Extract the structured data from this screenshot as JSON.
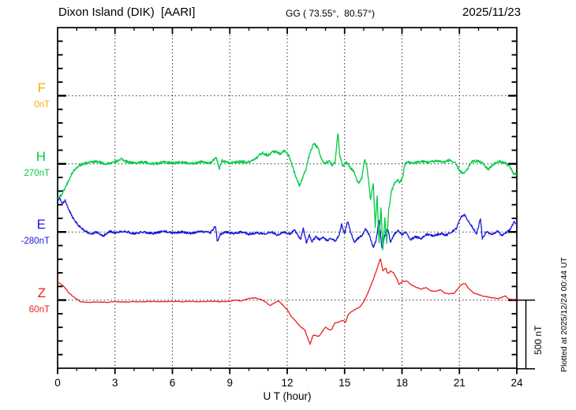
{
  "header": {
    "title": "Dixon Island (DIK)  [AARI]",
    "coordinates": "GG ( 73.55°,  80.57°)",
    "date": "2025/11/23"
  },
  "colors": {
    "F": "#ffaa00",
    "H": "#00cc44",
    "E": "#1818dd",
    "Z": "#ee1c1c",
    "frame": "#000000",
    "grid": "#333333"
  },
  "x_axis": {
    "tick_labels": [
      "0",
      "3",
      "6",
      "9",
      "12",
      "15",
      "18",
      "21",
      "24"
    ],
    "label": "U T (hour)"
  },
  "annotations": {
    "scale_bar_label": "500 nT",
    "plotted_at": "Plotted at 2025/12/24 00:44 UT"
  },
  "channels": [
    {
      "letter": "F",
      "baseline_label": "0nT"
    },
    {
      "letter": "H",
      "baseline_label": "270nT"
    },
    {
      "letter": "E",
      "baseline_label": "-280nT"
    },
    {
      "letter": "Z",
      "baseline_label": "60nT"
    }
  ],
  "chart_data": {
    "type": "line",
    "title": "Dixon Island (DIK) [AARI] magnetogram 2025/11/23",
    "xlabel": "U T (hour)",
    "x_range": [
      0,
      24
    ],
    "x_tick_step_hours": 3,
    "x_minor_tick_hours": 1,
    "grid": "dotted vertical lines every 3 h; dotted horizontal line at each channel baseline",
    "y_scale_note": "500 nT between adjacent channel baselines (scale bar at lower right)",
    "legend_position": "channel letters with baseline values along left margin",
    "series": [
      {
        "name": "F",
        "baseline_nT": 0,
        "color": "#ffaa00",
        "no_data": true,
        "noise_nT": 0,
        "points": []
      },
      {
        "name": "H",
        "baseline_nT": 270,
        "color": "#00cc44",
        "no_data": false,
        "noise_nT": 10,
        "points": [
          [
            0,
            -249
          ],
          [
            0.2,
            -231
          ],
          [
            0.5,
            -145
          ],
          [
            0.8,
            -58
          ],
          [
            1.1,
            -12
          ],
          [
            1.5,
            6
          ],
          [
            2,
            17
          ],
          [
            2.5,
            0
          ],
          [
            3,
            12
          ],
          [
            3.3,
            35
          ],
          [
            3.6,
            17
          ],
          [
            4,
            6
          ],
          [
            4.5,
            12
          ],
          [
            5,
            0
          ],
          [
            5.5,
            12
          ],
          [
            6,
            6
          ],
          [
            6.5,
            12
          ],
          [
            7,
            0
          ],
          [
            7.5,
            17
          ],
          [
            8,
            6
          ],
          [
            8.3,
            46
          ],
          [
            8.45,
            -35
          ],
          [
            8.6,
            23
          ],
          [
            9,
            6
          ],
          [
            9.5,
            17
          ],
          [
            10,
            12
          ],
          [
            10.4,
            46
          ],
          [
            10.7,
            81
          ],
          [
            11,
            64
          ],
          [
            11.3,
            93
          ],
          [
            11.6,
            75
          ],
          [
            11.9,
            98
          ],
          [
            12.1,
            58
          ],
          [
            12.3,
            -29
          ],
          [
            12.5,
            -116
          ],
          [
            12.65,
            -162
          ],
          [
            12.8,
            -104
          ],
          [
            13,
            -29
          ],
          [
            13.2,
            87
          ],
          [
            13.4,
            150
          ],
          [
            13.6,
            116
          ],
          [
            13.8,
            29
          ],
          [
            14,
            0
          ],
          [
            14.2,
            29
          ],
          [
            14.35,
            -17
          ],
          [
            14.5,
            12
          ],
          [
            14.65,
            231
          ],
          [
            14.75,
            58
          ],
          [
            14.9,
            -12
          ],
          [
            15.1,
            12
          ],
          [
            15.3,
            -29
          ],
          [
            15.5,
            -58
          ],
          [
            15.7,
            -145
          ],
          [
            15.9,
            -104
          ],
          [
            16.05,
            46
          ],
          [
            16.2,
            -58
          ],
          [
            16.35,
            -260
          ],
          [
            16.5,
            -145
          ],
          [
            16.6,
            -463
          ],
          [
            16.7,
            -231
          ],
          [
            16.8,
            -579
          ],
          [
            16.9,
            -318
          ],
          [
            17,
            -625
          ],
          [
            17.1,
            -405
          ],
          [
            17.2,
            -579
          ],
          [
            17.3,
            -347
          ],
          [
            17.45,
            -203
          ],
          [
            17.6,
            -145
          ],
          [
            17.75,
            -116
          ],
          [
            17.9,
            -139
          ],
          [
            18.05,
            -87
          ],
          [
            18.15,
            0
          ],
          [
            18.3,
            12
          ],
          [
            18.6,
            6
          ],
          [
            19,
            17
          ],
          [
            19.4,
            12
          ],
          [
            19.8,
            23
          ],
          [
            20.2,
            12
          ],
          [
            20.5,
            29
          ],
          [
            20.8,
            0
          ],
          [
            21,
            -46
          ],
          [
            21.2,
            -75
          ],
          [
            21.4,
            -46
          ],
          [
            21.6,
            12
          ],
          [
            21.9,
            23
          ],
          [
            22.2,
            6
          ],
          [
            22.5,
            -41
          ],
          [
            22.8,
            0
          ],
          [
            23.1,
            17
          ],
          [
            23.4,
            6
          ],
          [
            23.6,
            -12
          ],
          [
            23.8,
            -69
          ],
          [
            24,
            -81
          ]
        ]
      },
      {
        "name": "E",
        "baseline_nT": -280,
        "color": "#1818dd",
        "no_data": false,
        "noise_nT": 8,
        "points": [
          [
            0,
            220
          ],
          [
            0.1,
            249
          ],
          [
            0.25,
            208
          ],
          [
            0.4,
            231
          ],
          [
            0.55,
            174
          ],
          [
            0.8,
            104
          ],
          [
            1.1,
            46
          ],
          [
            1.4,
            12
          ],
          [
            1.7,
            -17
          ],
          [
            2,
            0
          ],
          [
            2.4,
            -29
          ],
          [
            2.7,
            6
          ],
          [
            3,
            -6
          ],
          [
            3.5,
            6
          ],
          [
            4,
            -12
          ],
          [
            4.5,
            0
          ],
          [
            5,
            -12
          ],
          [
            5.5,
            6
          ],
          [
            6,
            -6
          ],
          [
            6.5,
            0
          ],
          [
            7,
            -12
          ],
          [
            7.5,
            6
          ],
          [
            8,
            -6
          ],
          [
            8.25,
            46
          ],
          [
            8.35,
            -75
          ],
          [
            8.5,
            -17
          ],
          [
            8.8,
            0
          ],
          [
            9.2,
            -12
          ],
          [
            9.6,
            0
          ],
          [
            10,
            -17
          ],
          [
            10.4,
            -6
          ],
          [
            10.8,
            -12
          ],
          [
            11.2,
            0
          ],
          [
            11.5,
            -23
          ],
          [
            11.8,
            0
          ],
          [
            12.1,
            -17
          ],
          [
            12.4,
            12
          ],
          [
            12.7,
            -58
          ],
          [
            12.85,
            29
          ],
          [
            13,
            -81
          ],
          [
            13.15,
            -23
          ],
          [
            13.3,
            -69
          ],
          [
            13.5,
            -35
          ],
          [
            13.7,
            -58
          ],
          [
            13.9,
            -41
          ],
          [
            14.1,
            -64
          ],
          [
            14.3,
            -46
          ],
          [
            14.5,
            -69
          ],
          [
            14.7,
            -29
          ],
          [
            14.85,
            58
          ],
          [
            15,
            -17
          ],
          [
            15.15,
            81
          ],
          [
            15.3,
            12
          ],
          [
            15.5,
            -75
          ],
          [
            15.7,
            -46
          ],
          [
            15.9,
            -29
          ],
          [
            16.1,
            23
          ],
          [
            16.3,
            -23
          ],
          [
            16.5,
            -116
          ],
          [
            16.65,
            -58
          ],
          [
            16.8,
            93
          ],
          [
            16.95,
            -127
          ],
          [
            17.1,
            -29
          ],
          [
            17.25,
            29
          ],
          [
            17.4,
            -75
          ],
          [
            17.6,
            -17
          ],
          [
            17.8,
            12
          ],
          [
            18,
            -23
          ],
          [
            18.2,
            0
          ],
          [
            18.45,
            -58
          ],
          [
            18.7,
            -35
          ],
          [
            19,
            -46
          ],
          [
            19.3,
            -17
          ],
          [
            19.6,
            -29
          ],
          [
            20,
            -12
          ],
          [
            20.3,
            -23
          ],
          [
            20.6,
            0
          ],
          [
            20.85,
            29
          ],
          [
            21.1,
            116
          ],
          [
            21.25,
            127
          ],
          [
            21.45,
            87
          ],
          [
            21.7,
            29
          ],
          [
            21.9,
            -12
          ],
          [
            22.1,
            98
          ],
          [
            22.2,
            -52
          ],
          [
            22.4,
            0
          ],
          [
            22.7,
            -17
          ],
          [
            23,
            6
          ],
          [
            23.2,
            -23
          ],
          [
            23.5,
            0
          ],
          [
            23.7,
            29
          ],
          [
            23.85,
            75
          ],
          [
            24,
            58
          ]
        ]
      },
      {
        "name": "Z",
        "baseline_nT": 60,
        "color": "#ee1c1c",
        "no_data": false,
        "noise_nT": 2.5,
        "points": [
          [
            0,
            133
          ],
          [
            0.2,
            116
          ],
          [
            0.4,
            87
          ],
          [
            0.6,
            52
          ],
          [
            0.9,
            17
          ],
          [
            1.2,
            -12
          ],
          [
            1.6,
            -17
          ],
          [
            2,
            -14
          ],
          [
            2.5,
            -17
          ],
          [
            3,
            -12
          ],
          [
            3.5,
            -14
          ],
          [
            4,
            -12
          ],
          [
            4.5,
            -12
          ],
          [
            5,
            -9
          ],
          [
            5.5,
            -12
          ],
          [
            6,
            -9
          ],
          [
            6.5,
            -12
          ],
          [
            7,
            -9
          ],
          [
            7.5,
            -12
          ],
          [
            8,
            -9
          ],
          [
            8.5,
            -12
          ],
          [
            9,
            -9
          ],
          [
            9.3,
            0
          ],
          [
            9.6,
            -6
          ],
          [
            10,
            12
          ],
          [
            10.3,
            17
          ],
          [
            10.6,
            6
          ],
          [
            10.9,
            -17
          ],
          [
            11.1,
            -41
          ],
          [
            11.3,
            -23
          ],
          [
            11.55,
            -6
          ],
          [
            11.8,
            -41
          ],
          [
            12,
            -69
          ],
          [
            12.2,
            -116
          ],
          [
            12.45,
            -156
          ],
          [
            12.7,
            -197
          ],
          [
            12.9,
            -214
          ],
          [
            13.05,
            -272
          ],
          [
            13.2,
            -324
          ],
          [
            13.35,
            -255
          ],
          [
            13.5,
            -260
          ],
          [
            13.65,
            -266
          ],
          [
            13.8,
            -237
          ],
          [
            14,
            -197
          ],
          [
            14.15,
            -214
          ],
          [
            14.3,
            -220
          ],
          [
            14.5,
            -168
          ],
          [
            14.7,
            -162
          ],
          [
            14.9,
            -150
          ],
          [
            15.05,
            -162
          ],
          [
            15.2,
            -104
          ],
          [
            15.4,
            -81
          ],
          [
            15.6,
            -64
          ],
          [
            15.8,
            -52
          ],
          [
            16,
            -12
          ],
          [
            16.2,
            46
          ],
          [
            16.4,
            116
          ],
          [
            16.6,
            191
          ],
          [
            16.75,
            255
          ],
          [
            16.87,
            307
          ],
          [
            17,
            214
          ],
          [
            17.15,
            237
          ],
          [
            17.25,
            191
          ],
          [
            17.4,
            214
          ],
          [
            17.55,
            203
          ],
          [
            17.7,
            162
          ],
          [
            17.85,
            116
          ],
          [
            18.05,
            139
          ],
          [
            18.25,
            139
          ],
          [
            18.5,
            110
          ],
          [
            18.75,
            93
          ],
          [
            19,
            81
          ],
          [
            19.25,
            93
          ],
          [
            19.5,
            69
          ],
          [
            19.75,
            64
          ],
          [
            20,
            75
          ],
          [
            20.25,
            52
          ],
          [
            20.5,
            46
          ],
          [
            20.75,
            52
          ],
          [
            21.1,
            116
          ],
          [
            21.3,
            122
          ],
          [
            21.5,
            81
          ],
          [
            21.75,
            52
          ],
          [
            22,
            41
          ],
          [
            22.25,
            29
          ],
          [
            22.5,
            23
          ],
          [
            22.75,
            17
          ],
          [
            23,
            12
          ],
          [
            23.2,
            20
          ],
          [
            23.4,
            29
          ],
          [
            23.6,
            6
          ],
          [
            23.8,
            6
          ],
          [
            24,
            6
          ]
        ]
      }
    ]
  }
}
